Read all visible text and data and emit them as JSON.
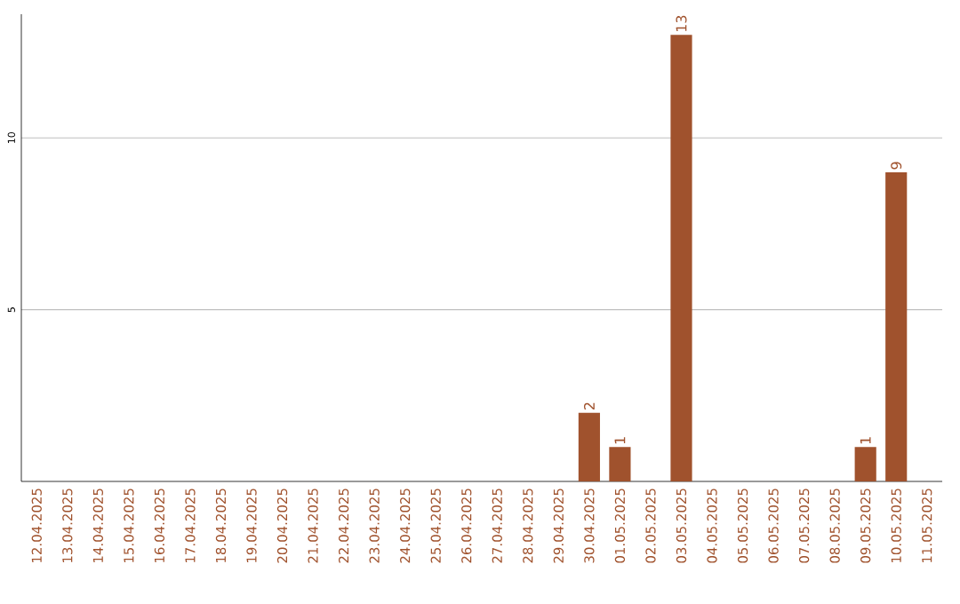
{
  "chart_data": {
    "type": "bar",
    "categories": [
      "12.04.2025",
      "13.04.2025",
      "14.04.2025",
      "15.04.2025",
      "16.04.2025",
      "17.04.2025",
      "18.04.2025",
      "19.04.2025",
      "20.04.2025",
      "21.04.2025",
      "22.04.2025",
      "23.04.2025",
      "24.04.2025",
      "25.04.2025",
      "26.04.2025",
      "27.04.2025",
      "28.04.2025",
      "29.04.2025",
      "30.04.2025",
      "01.05.2025",
      "02.05.2025",
      "03.05.2025",
      "04.05.2025",
      "05.05.2025",
      "06.05.2025",
      "07.05.2025",
      "08.05.2025",
      "09.05.2025",
      "10.05.2025",
      "11.05.2025"
    ],
    "values": [
      0,
      0,
      0,
      0,
      0,
      0,
      0,
      0,
      0,
      0,
      0,
      0,
      0,
      0,
      0,
      0,
      0,
      0,
      2,
      1,
      0,
      13,
      0,
      0,
      0,
      0,
      0,
      1,
      9,
      0
    ],
    "value_labels": [
      null,
      null,
      null,
      null,
      null,
      null,
      null,
      null,
      null,
      null,
      null,
      null,
      null,
      null,
      null,
      null,
      null,
      null,
      "2",
      "1",
      null,
      "13",
      null,
      null,
      null,
      null,
      null,
      "1",
      "9",
      null
    ],
    "color": "#a0522d",
    "ylim": [
      0,
      13.6
    ],
    "yticks": [
      5,
      10
    ],
    "grid": "y"
  }
}
